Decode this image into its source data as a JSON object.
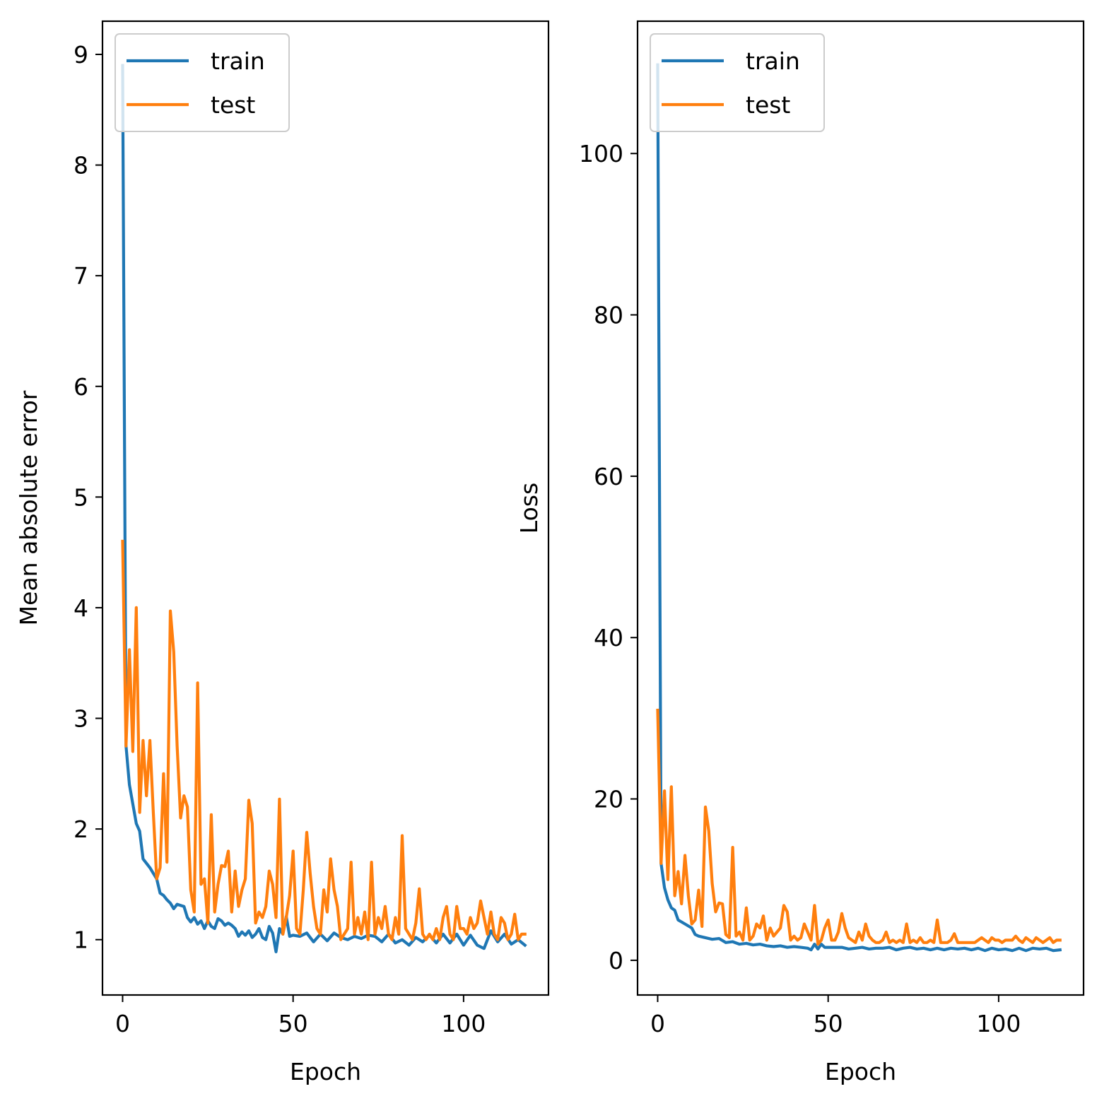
{
  "chart_data": [
    {
      "type": "line",
      "xlabel": "Epoch",
      "ylabel": "Mean absolute error",
      "xlim": [
        -5.9,
        124.9
      ],
      "ylim": [
        0.5,
        9.3
      ],
      "xticks": [
        0,
        50,
        100
      ],
      "yticks": [
        1,
        2,
        3,
        4,
        5,
        6,
        7,
        8,
        9
      ],
      "grid": false,
      "legend_position": "upper-left",
      "series": [
        {
          "name": "train",
          "color": "#1f77b4",
          "x": [
            0,
            1,
            2,
            4,
            5,
            6,
            8,
            9,
            10,
            11,
            12,
            13,
            14,
            15,
            16,
            17,
            18,
            19,
            20,
            21,
            22,
            23,
            24,
            25,
            26,
            27,
            28,
            29,
            30,
            31,
            32,
            33,
            34,
            35,
            36,
            37,
            38,
            39,
            40,
            41,
            42,
            43,
            44,
            45,
            46,
            47,
            48,
            49,
            50,
            52,
            54,
            56,
            58,
            60,
            62,
            64,
            66,
            68,
            70,
            72,
            74,
            76,
            78,
            80,
            82,
            84,
            86,
            88,
            90,
            92,
            94,
            96,
            98,
            100,
            102,
            104,
            106,
            108,
            110,
            112,
            114,
            116,
            118
          ],
          "y": [
            8.9,
            2.75,
            2.4,
            2.05,
            1.98,
            1.73,
            1.65,
            1.6,
            1.55,
            1.42,
            1.4,
            1.36,
            1.33,
            1.28,
            1.32,
            1.31,
            1.3,
            1.2,
            1.16,
            1.2,
            1.14,
            1.17,
            1.1,
            1.17,
            1.12,
            1.1,
            1.19,
            1.17,
            1.13,
            1.15,
            1.13,
            1.1,
            1.03,
            1.07,
            1.04,
            1.08,
            1.02,
            1.05,
            1.1,
            1.02,
            1.0,
            1.12,
            1.06,
            0.89,
            1.1,
            1.05,
            1.21,
            1.03,
            1.04,
            1.03,
            1.06,
            0.98,
            1.05,
            0.99,
            1.06,
            1.02,
            1.0,
            1.03,
            1.01,
            1.04,
            1.03,
            0.98,
            1.05,
            0.97,
            1.0,
            0.95,
            1.02,
            0.98,
            1.04,
            0.97,
            1.05,
            0.97,
            1.05,
            0.95,
            1.04,
            0.95,
            0.92,
            1.08,
            0.98,
            1.05,
            0.96,
            1.0,
            0.95
          ]
        },
        {
          "name": "test",
          "color": "#ff7f0e",
          "x": [
            0,
            1,
            2,
            3,
            4,
            5,
            6,
            7,
            8,
            9,
            10,
            11,
            12,
            13,
            14,
            15,
            16,
            17,
            18,
            19,
            20,
            21,
            22,
            23,
            24,
            25,
            26,
            27,
            28,
            29,
            30,
            31,
            32,
            33,
            34,
            35,
            36,
            37,
            38,
            39,
            40,
            41,
            42,
            43,
            44,
            45,
            46,
            47,
            48,
            49,
            50,
            51,
            52,
            53,
            54,
            55,
            56,
            57,
            58,
            59,
            60,
            61,
            62,
            63,
            64,
            65,
            66,
            67,
            68,
            69,
            70,
            71,
            72,
            73,
            74,
            75,
            76,
            77,
            78,
            79,
            80,
            81,
            82,
            83,
            84,
            85,
            86,
            87,
            88,
            89,
            90,
            91,
            92,
            93,
            94,
            95,
            96,
            97,
            98,
            99,
            100,
            101,
            102,
            103,
            104,
            105,
            106,
            107,
            108,
            109,
            110,
            111,
            112,
            113,
            114,
            115,
            116,
            117,
            118
          ],
          "y": [
            4.6,
            2.75,
            3.62,
            2.7,
            4.0,
            2.15,
            2.8,
            2.3,
            2.8,
            2.15,
            1.55,
            1.65,
            2.5,
            1.7,
            3.97,
            3.6,
            2.75,
            2.1,
            2.3,
            2.2,
            1.45,
            1.25,
            3.32,
            1.5,
            1.55,
            1.15,
            2.13,
            1.25,
            1.5,
            1.67,
            1.66,
            1.8,
            1.25,
            1.62,
            1.3,
            1.45,
            1.55,
            2.26,
            2.05,
            1.15,
            1.25,
            1.2,
            1.3,
            1.62,
            1.5,
            1.2,
            2.27,
            1.05,
            1.2,
            1.4,
            1.8,
            1.1,
            1.05,
            1.45,
            1.97,
            1.6,
            1.3,
            1.1,
            1.05,
            1.45,
            1.25,
            1.73,
            1.45,
            1.3,
            1.0,
            1.05,
            1.1,
            1.7,
            1.05,
            1.2,
            1.05,
            1.25,
            1.0,
            1.7,
            1.05,
            1.2,
            1.1,
            1.3,
            1.05,
            1.0,
            1.2,
            1.05,
            1.94,
            1.1,
            1.05,
            1.0,
            1.15,
            1.46,
            1.05,
            1.0,
            1.05,
            1.0,
            1.1,
            1.0,
            1.2,
            1.3,
            1.05,
            1.0,
            1.3,
            1.1,
            1.1,
            1.05,
            1.2,
            1.1,
            1.15,
            1.35,
            1.2,
            1.05,
            1.25,
            1.05,
            1.0,
            1.2,
            1.15,
            1.0,
            1.05,
            1.23,
            1.0,
            1.05,
            1.05
          ]
        }
      ]
    },
    {
      "type": "line",
      "xlabel": "Epoch",
      "ylabel": "Loss",
      "xlim": [
        -5.9,
        124.9
      ],
      "ylim": [
        -4.3,
        116.4
      ],
      "xticks": [
        0,
        50,
        100
      ],
      "yticks": [
        0,
        20,
        40,
        60,
        80,
        100
      ],
      "grid": false,
      "legend_position": "upper-left",
      "series": [
        {
          "name": "train",
          "color": "#1f77b4",
          "x": [
            0,
            1,
            2,
            3,
            4,
            5,
            6,
            8,
            10,
            11,
            12,
            14,
            16,
            18,
            20,
            22,
            24,
            26,
            28,
            30,
            32,
            34,
            36,
            38,
            40,
            42,
            44,
            45,
            46,
            47,
            48,
            49,
            50,
            52,
            54,
            56,
            58,
            60,
            62,
            64,
            66,
            68,
            70,
            72,
            74,
            76,
            78,
            80,
            82,
            84,
            86,
            88,
            90,
            92,
            94,
            96,
            98,
            100,
            102,
            104,
            106,
            108,
            110,
            112,
            114,
            116,
            118
          ],
          "y": [
            111,
            12,
            9,
            7.5,
            6.5,
            6.2,
            5,
            4.5,
            4,
            3.2,
            3.0,
            2.8,
            2.6,
            2.7,
            2.2,
            2.3,
            2.0,
            2.1,
            1.9,
            2.0,
            1.8,
            1.7,
            1.8,
            1.6,
            1.7,
            1.6,
            1.5,
            1.3,
            2.0,
            1.4,
            2.0,
            1.6,
            1.6,
            1.6,
            1.6,
            1.4,
            1.5,
            1.6,
            1.4,
            1.5,
            1.5,
            1.6,
            1.3,
            1.5,
            1.6,
            1.4,
            1.5,
            1.3,
            1.5,
            1.3,
            1.5,
            1.4,
            1.5,
            1.3,
            1.5,
            1.2,
            1.5,
            1.3,
            1.4,
            1.2,
            1.5,
            1.2,
            1.5,
            1.4,
            1.5,
            1.2,
            1.3
          ]
        },
        {
          "name": "test",
          "color": "#ff7f0e",
          "x": [
            0,
            1,
            2,
            3,
            4,
            5,
            6,
            7,
            8,
            9,
            10,
            11,
            12,
            13,
            14,
            15,
            16,
            17,
            18,
            19,
            20,
            21,
            22,
            23,
            24,
            25,
            26,
            27,
            28,
            29,
            30,
            31,
            32,
            33,
            34,
            35,
            36,
            37,
            38,
            39,
            40,
            41,
            42,
            43,
            44,
            45,
            46,
            47,
            48,
            49,
            50,
            51,
            52,
            53,
            54,
            55,
            56,
            57,
            58,
            59,
            60,
            61,
            62,
            63,
            64,
            65,
            66,
            67,
            68,
            69,
            70,
            71,
            72,
            73,
            74,
            75,
            76,
            77,
            78,
            79,
            80,
            81,
            82,
            83,
            84,
            85,
            86,
            87,
            88,
            89,
            90,
            91,
            92,
            93,
            94,
            95,
            96,
            97,
            98,
            99,
            100,
            101,
            102,
            103,
            104,
            105,
            106,
            107,
            108,
            109,
            110,
            111,
            112,
            113,
            114,
            115,
            116,
            117,
            118
          ],
          "y": [
            31,
            12,
            21,
            10,
            21.5,
            8,
            11,
            7,
            13,
            8,
            4.5,
            5,
            8.7,
            4.2,
            19,
            16,
            9.5,
            6,
            7.1,
            7,
            3.2,
            2.8,
            14,
            3,
            3.5,
            2.5,
            6.5,
            2.5,
            3,
            4.5,
            4,
            5.5,
            2.5,
            4,
            3,
            3.5,
            4,
            6.8,
            6,
            2.5,
            3,
            2.5,
            2.8,
            4.5,
            3.5,
            2.5,
            6.8,
            2,
            2.5,
            4,
            5,
            2.5,
            2.5,
            3.5,
            5.8,
            4,
            2.8,
            2.5,
            2.2,
            3.5,
            2.5,
            4.5,
            3,
            2.5,
            2.2,
            2.2,
            2.5,
            3.5,
            2.2,
            2.5,
            2.2,
            2.5,
            2.2,
            4.5,
            2.2,
            2.5,
            2.2,
            2.8,
            2.2,
            2.2,
            2.5,
            2.2,
            5,
            2.2,
            2.2,
            2.2,
            2.5,
            3.3,
            2.2,
            2.2,
            2.2,
            2.2,
            2.2,
            2.2,
            2.5,
            2.8,
            2.5,
            2.2,
            2.8,
            2.5,
            2.5,
            2.2,
            2.5,
            2.5,
            2.5,
            3.0,
            2.5,
            2.2,
            2.8,
            2.5,
            2.2,
            2.8,
            2.5,
            2.2,
            2.5,
            2.8,
            2.2,
            2.5,
            2.5
          ]
        }
      ]
    }
  ]
}
